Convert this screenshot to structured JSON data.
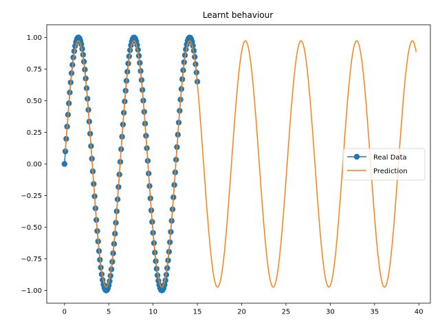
{
  "chart_data": {
    "type": "line",
    "title": "Learnt behaviour",
    "xlabel": "",
    "ylabel": "",
    "xlim": [
      -2,
      41.3
    ],
    "ylim": [
      -1.1,
      1.1
    ],
    "xticks": [
      0,
      5,
      10,
      15,
      20,
      25,
      30,
      35,
      40
    ],
    "xtick_labels": [
      "0",
      "5",
      "10",
      "15",
      "20",
      "25",
      "30",
      "35",
      "40"
    ],
    "yticks": [
      -1.0,
      -0.75,
      -0.5,
      -0.25,
      0.0,
      0.25,
      0.5,
      0.75,
      1.0
    ],
    "ytick_labels": [
      "−1.00",
      "−0.75",
      "−0.50",
      "−0.25",
      "0.00",
      "0.25",
      "0.50",
      "0.75",
      "1.00"
    ],
    "grid": false,
    "legend": "center-right",
    "series": [
      {
        "name": "Real Data",
        "style": "line-marker",
        "color": "#1f77b4",
        "function": "sin(x)",
        "x_start": 0.0,
        "x_end": 15.0,
        "x_step": 0.1
      },
      {
        "name": "Prediction",
        "style": "line",
        "color": "#ff7f0e",
        "function": "0.973 * sin(x)",
        "x_start": 0.1,
        "x_end": 39.7,
        "x_step": 0.05
      }
    ]
  }
}
